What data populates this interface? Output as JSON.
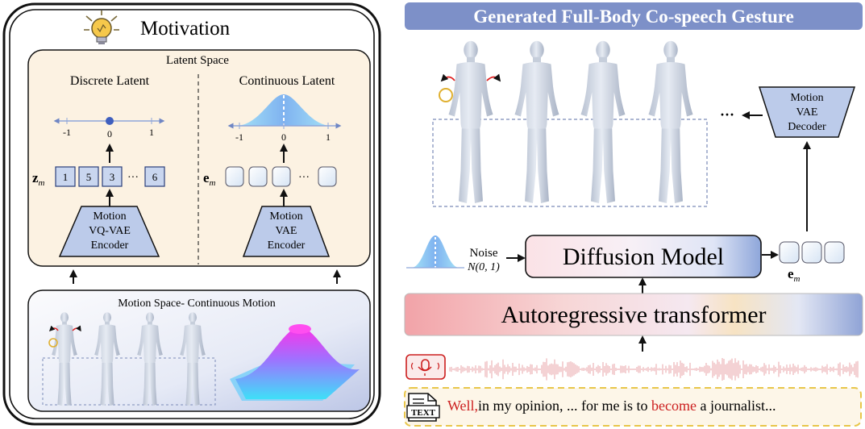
{
  "left": {
    "title": "Motivation",
    "latent_space": {
      "label": "Latent Space",
      "discrete": {
        "label": "Discrete Latent",
        "axis_ticks": [
          "-1",
          "0",
          "1"
        ],
        "token_symbol": "z",
        "token_subscript": "m",
        "tokens": [
          "1",
          "5",
          "3",
          "6"
        ],
        "ellipsis": "···",
        "encoder_lines": [
          "Motion",
          "VQ-VAE",
          "Encoder"
        ]
      },
      "continuous": {
        "label": "Continuous Latent",
        "axis_ticks": [
          "-1",
          "0",
          "1"
        ],
        "token_symbol": "e",
        "token_subscript": "m",
        "ellipsis": "···",
        "encoder_lines": [
          "Motion",
          "VAE",
          "Encoder"
        ]
      }
    },
    "motion_space": {
      "label": "Motion Space- Continuous Motion"
    }
  },
  "right": {
    "title": "Generated Full-Body Co-speech Gesture",
    "decoder_lines": [
      "Motion",
      "VAE",
      "Decoder"
    ],
    "ellipsis": "···",
    "noise_label": "Noise",
    "noise_dist": "N(0, 1)",
    "diffusion_label": "Diffusion Model",
    "embed_symbol": "e",
    "embed_subscript": "m",
    "transformer_label": "Autoregressive transformer",
    "text_icon_label": "TEXT",
    "transcript": {
      "w1": "Well,",
      "w2": "in my opinion, ... for me is to ",
      "w3": "become",
      "w4": " a journalist..."
    }
  },
  "colors": {
    "accent_blue": "#6f86c4",
    "latent_bg": "#fcf2e2",
    "token_fill": "#c9d6ef",
    "encoder_fill": "#bccbea",
    "red_text": "#cc1f1f",
    "waveform": "#e8a6a8"
  }
}
